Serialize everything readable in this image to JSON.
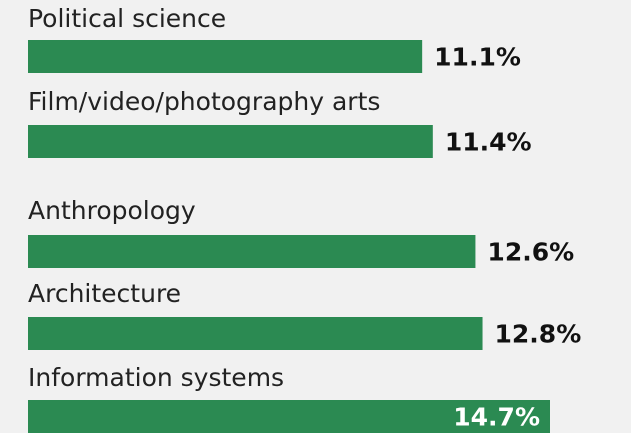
{
  "chart_data": {
    "type": "hbar",
    "categories": [
      "Political science",
      "Film/video/photography arts",
      "Anthropology",
      "Architecture",
      "Information systems"
    ],
    "values": [
      11.1,
      11.4,
      12.6,
      12.8,
      14.7
    ],
    "value_labels": [
      "11.1%",
      "11.4%",
      "12.6%",
      "12.8%",
      "14.7%"
    ],
    "color": "#2b8a52"
  }
}
